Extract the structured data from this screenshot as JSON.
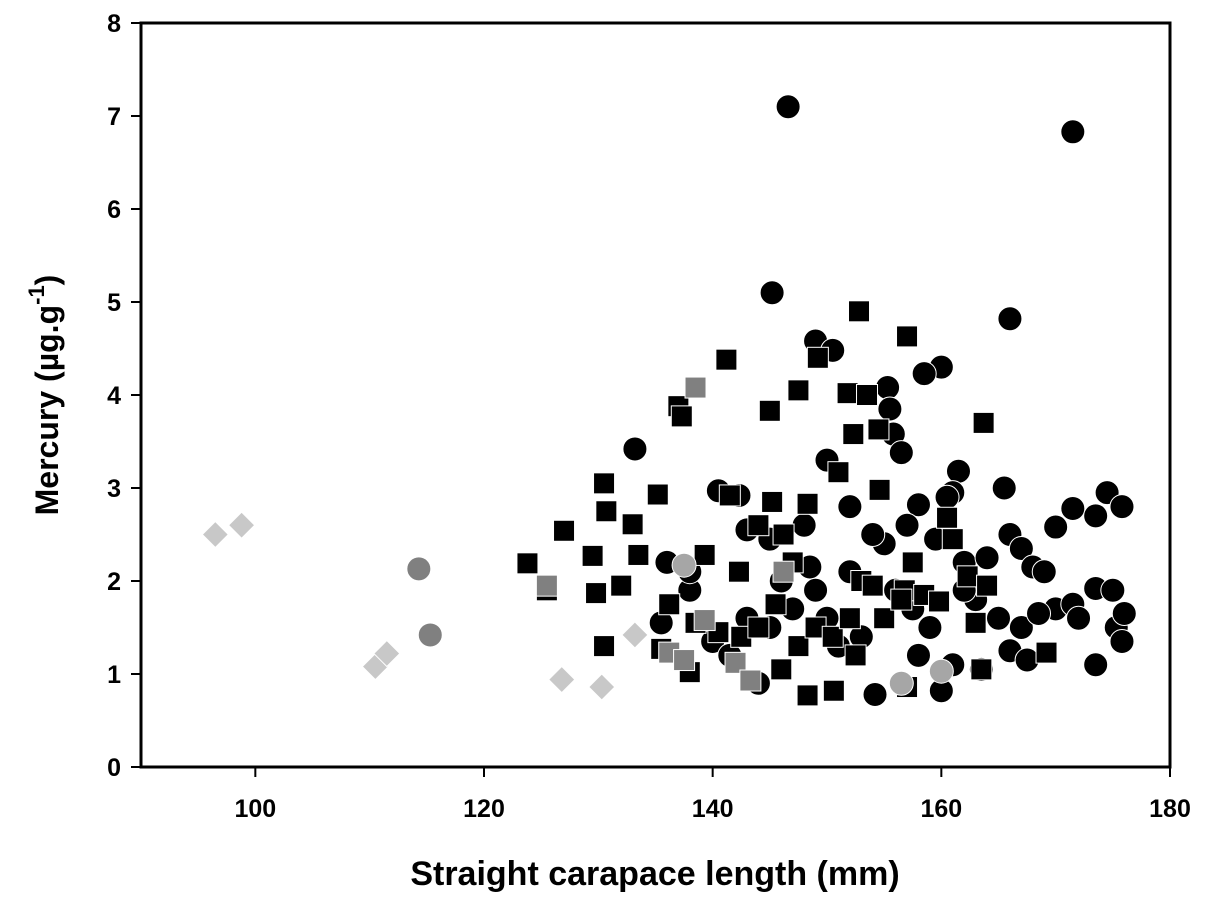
{
  "chart_data": {
    "type": "scatter",
    "xlabel": "Straight carapace length (mm)",
    "ylabel": {
      "text": "Mercury (µg.g",
      "sup": "-1",
      "end": ")"
    },
    "xlim": [
      90,
      180
    ],
    "xticks": [
      100,
      120,
      140,
      160,
      180
    ],
    "ylim": [
      0,
      8
    ],
    "yticks": [
      0,
      1,
      2,
      3,
      4,
      5,
      6,
      7,
      8
    ],
    "series": [
      {
        "color": "#000000",
        "marker": "circle",
        "x": [
          146.6,
          171.5,
          145.2,
          166,
          149,
          150.5,
          160,
          158.5,
          155.3,
          155.5,
          155.8,
          156.5,
          133.2,
          150,
          165.5,
          161.5,
          161,
          140.5,
          142.3,
          145,
          143,
          148,
          152,
          158,
          159.5,
          160.5,
          166,
          167,
          170,
          171.5,
          173.5,
          174.5,
          175.8,
          136,
          138,
          135.5,
          140,
          141.5,
          144,
          145,
          147,
          148.5,
          150,
          151,
          153,
          154.2,
          155,
          156,
          157.5,
          158,
          159,
          160,
          161,
          162,
          163,
          164,
          165,
          166,
          167.5,
          168,
          169,
          170,
          171.5,
          172,
          173.5,
          173.5,
          175,
          175.3,
          175.8,
          176,
          152,
          149,
          146,
          163.5,
          157,
          154,
          162,
          167,
          168.5,
          143,
          138
        ],
        "y": [
          7.1,
          6.83,
          5.1,
          4.82,
          4.58,
          4.48,
          4.3,
          4.23,
          4.08,
          3.85,
          3.58,
          3.38,
          3.42,
          3.3,
          3.0,
          3.18,
          2.95,
          2.97,
          2.92,
          2.45,
          2.55,
          2.6,
          2.8,
          2.82,
          2.45,
          2.9,
          2.5,
          2.35,
          2.58,
          2.78,
          2.7,
          2.95,
          2.8,
          2.2,
          1.9,
          1.55,
          1.35,
          1.2,
          0.9,
          1.5,
          1.7,
          2.15,
          1.6,
          1.3,
          1.4,
          0.78,
          2.4,
          1.9,
          1.7,
          1.2,
          1.5,
          0.82,
          1.1,
          2.2,
          1.8,
          2.25,
          1.6,
          1.25,
          1.15,
          2.15,
          2.1,
          1.7,
          1.75,
          1.6,
          1.92,
          1.1,
          1.9,
          1.5,
          1.35,
          1.65,
          2.1,
          1.9,
          2.0,
          1.05,
          2.6,
          2.5,
          1.9,
          1.5,
          1.65,
          1.6,
          2.1
        ]
      },
      {
        "color": "#000000",
        "marker": "square",
        "x": [
          152.8,
          157,
          141.2,
          149.2,
          147.5,
          151.8,
          153.5,
          137,
          137.3,
          145,
          163.7,
          154.5,
          152.3,
          151,
          130.5,
          135.2,
          130.7,
          133,
          127,
          123.8,
          129.5,
          133.5,
          132,
          129.8,
          125.5,
          130.5,
          138,
          148.3,
          150.6,
          157,
          163.5,
          169.2,
          141.5,
          145.2,
          148.3,
          154.6,
          160.5,
          156.8,
          142.3,
          144,
          146.2,
          139.3,
          136.2,
          138.5,
          140.5,
          142.5,
          144,
          146,
          147.5,
          149,
          150.5,
          152,
          153,
          154,
          155,
          156.5,
          158.5,
          159.8,
          161,
          162.3,
          163,
          164,
          152.5,
          147,
          145.5,
          135.5,
          157.5
        ],
        "y": [
          4.9,
          4.63,
          4.38,
          4.4,
          4.05,
          4.02,
          4.0,
          3.88,
          3.77,
          3.83,
          3.7,
          3.63,
          3.58,
          3.17,
          3.05,
          2.93,
          2.75,
          2.61,
          2.54,
          2.19,
          2.27,
          2.28,
          1.95,
          1.87,
          1.9,
          1.3,
          1.02,
          0.77,
          0.82,
          0.86,
          1.05,
          1.23,
          2.92,
          2.85,
          2.83,
          2.98,
          2.68,
          1.9,
          2.1,
          2.6,
          2.5,
          2.28,
          1.75,
          1.55,
          1.45,
          1.4,
          1.5,
          1.05,
          1.3,
          1.5,
          1.4,
          1.6,
          2.0,
          1.95,
          1.6,
          1.8,
          1.85,
          1.78,
          2.45,
          2.05,
          1.55,
          1.95,
          1.2,
          2.2,
          1.75,
          1.27,
          2.2
        ]
      },
      {
        "color": "#808080",
        "marker": "circle",
        "x": [
          114.3,
          115.3
        ],
        "y": [
          2.13,
          1.42
        ]
      },
      {
        "color": "#a6a6a6",
        "marker": "circle",
        "x": [
          137.5,
          156.5,
          160
        ],
        "y": [
          2.17,
          0.9,
          1.03
        ]
      },
      {
        "color": "#808080",
        "marker": "square",
        "x": [
          125.5,
          138.5,
          139.3,
          136.2,
          137.5,
          142,
          143.3,
          146.2
        ],
        "y": [
          1.95,
          4.08,
          1.58,
          1.23,
          1.15,
          1.12,
          0.93,
          2.1
        ]
      },
      {
        "color": "#c8c8c8",
        "marker": "diamond",
        "x": [
          96.5,
          98.8,
          110.5,
          111.5,
          126.8,
          130.3,
          133.2
        ],
        "y": [
          2.5,
          2.6,
          1.08,
          1.22,
          0.94,
          0.86,
          1.42
        ]
      }
    ]
  }
}
